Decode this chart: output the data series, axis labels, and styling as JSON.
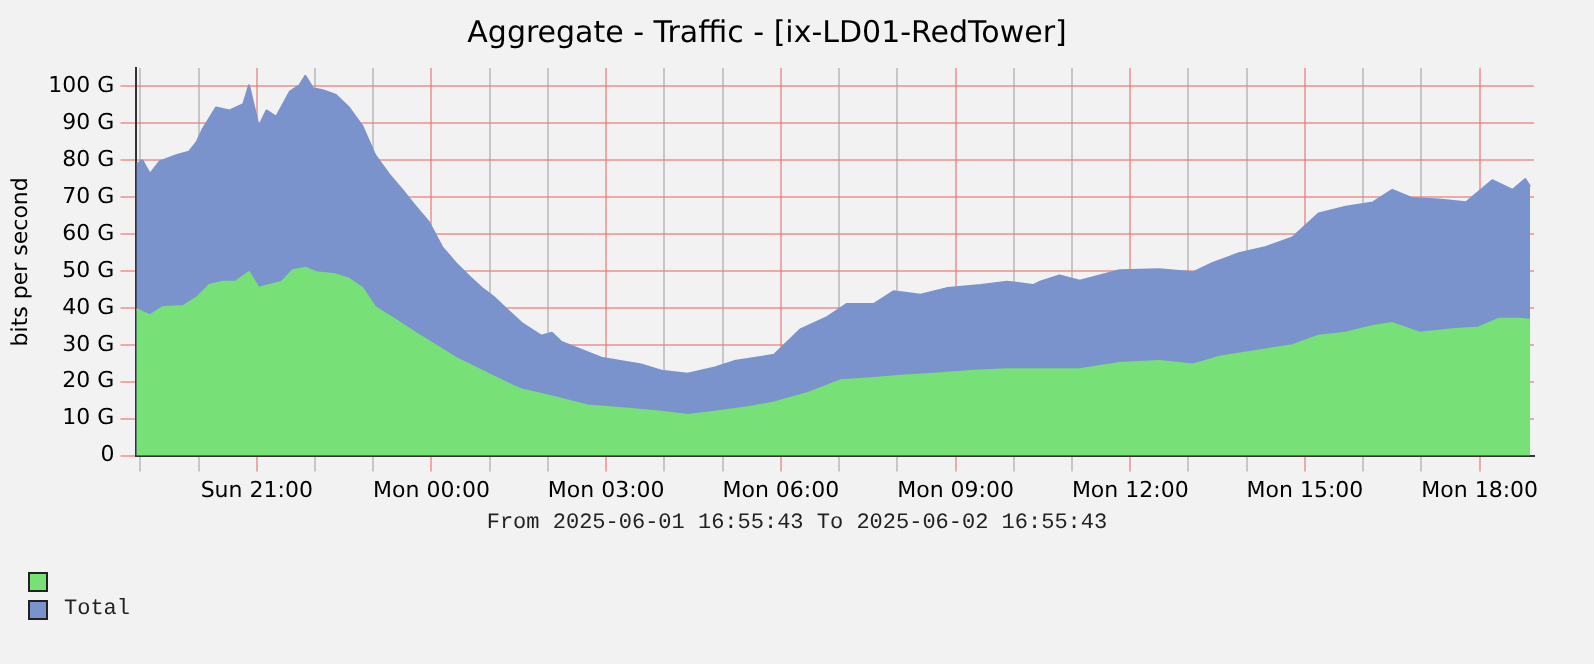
{
  "chart_data": {
    "type": "area",
    "title": "Aggregate - Traffic - [ix-LD01-RedTower]",
    "ylabel": "bits per second",
    "annotations": [
      "From 2025-06-01 16:55:43 To 2025-06-02 16:55:43"
    ],
    "xlim": [
      "2025-06-01T18:56",
      "2025-06-02T18:56"
    ],
    "xticks": [
      {
        "value": "2025-06-01T19:00",
        "label": null
      },
      {
        "value": "2025-06-01T20:00",
        "label": null
      },
      {
        "value": "2025-06-01T21:00",
        "label": "Sun 21:00"
      },
      {
        "value": "2025-06-01T22:00",
        "label": null
      },
      {
        "value": "2025-06-01T23:00",
        "label": null
      },
      {
        "value": "2025-06-02T00:00",
        "label": "Mon 00:00"
      },
      {
        "value": "2025-06-02T01:00",
        "label": null
      },
      {
        "value": "2025-06-02T02:00",
        "label": null
      },
      {
        "value": "2025-06-02T03:00",
        "label": "Mon 03:00"
      },
      {
        "value": "2025-06-02T04:00",
        "label": null
      },
      {
        "value": "2025-06-02T05:00",
        "label": null
      },
      {
        "value": "2025-06-02T06:00",
        "label": "Mon 06:00"
      },
      {
        "value": "2025-06-02T07:00",
        "label": null
      },
      {
        "value": "2025-06-02T08:00",
        "label": null
      },
      {
        "value": "2025-06-02T09:00",
        "label": "Mon 09:00"
      },
      {
        "value": "2025-06-02T10:00",
        "label": null
      },
      {
        "value": "2025-06-02T11:00",
        "label": null
      },
      {
        "value": "2025-06-02T12:00",
        "label": "Mon 12:00"
      },
      {
        "value": "2025-06-02T13:00",
        "label": null
      },
      {
        "value": "2025-06-02T14:00",
        "label": null
      },
      {
        "value": "2025-06-02T15:00",
        "label": "Mon 15:00"
      },
      {
        "value": "2025-06-02T16:00",
        "label": null
      },
      {
        "value": "2025-06-02T17:00",
        "label": null
      },
      {
        "value": "2025-06-02T18:00",
        "label": "Mon 18:00"
      }
    ],
    "ylim": [
      0,
      105
    ],
    "yticks": [
      0,
      {
        "value": 10,
        "label": "10 G"
      },
      {
        "value": 20,
        "label": "20 G"
      },
      {
        "value": 30,
        "label": "30 G"
      },
      {
        "value": 40,
        "label": "40 G"
      },
      {
        "value": 50,
        "label": "50 G"
      },
      {
        "value": 60,
        "label": "60 G"
      },
      {
        "value": 70,
        "label": "70 G"
      },
      {
        "value": 80,
        "label": "80 G"
      },
      {
        "value": 90,
        "label": "90 G"
      },
      {
        "value": 100,
        "label": "100 G"
      }
    ],
    "grid": true,
    "legend": "bottom left",
    "series": [
      {
        "color": "#77e077",
        "x": [
          "2025-06-01T18:56",
          "2025-06-01T19:10",
          "2025-06-01T19:23",
          "2025-06-01T19:44",
          "2025-06-01T19:58",
          "2025-06-01T20:11",
          "2025-06-01T20:25",
          "2025-06-01T20:38",
          "2025-06-01T20:52",
          "2025-06-01T21:02",
          "2025-06-01T21:13",
          "2025-06-01T21:26",
          "2025-06-01T21:37",
          "2025-06-01T21:50",
          "2025-06-01T22:01",
          "2025-06-01T22:21",
          "2025-06-01T22:35",
          "2025-06-01T22:49",
          "2025-06-01T23:02",
          "2025-06-01T23:23",
          "2025-06-01T23:43",
          "2025-06-02T00:04",
          "2025-06-02T00:25",
          "2025-06-02T00:45",
          "2025-06-02T01:05",
          "2025-06-02T01:26",
          "2025-06-02T01:33",
          "2025-06-02T02:01",
          "2025-06-02T02:41",
          "2025-06-02T03:23",
          "2025-06-02T03:57",
          "2025-06-02T04:24",
          "2025-06-02T04:52",
          "2025-06-02T05:26",
          "2025-06-02T05:53",
          "2025-06-02T06:28",
          "2025-06-02T07:02",
          "2025-06-02T07:36",
          "2025-06-02T08:04",
          "2025-06-02T08:38",
          "2025-06-02T09:19",
          "2025-06-02T09:53",
          "2025-06-02T10:27",
          "2025-06-02T11:08",
          "2025-06-02T11:49",
          "2025-06-02T12:30",
          "2025-06-02T13:05",
          "2025-06-02T13:32",
          "2025-06-02T14:06",
          "2025-06-02T14:47",
          "2025-06-02T15:14",
          "2025-06-02T15:42",
          "2025-06-02T16:10",
          "2025-06-02T16:30",
          "2025-06-02T16:58",
          "2025-06-02T17:32",
          "2025-06-02T17:59",
          "2025-06-02T18:20",
          "2025-06-02T18:40",
          "2025-06-02T18:52"
        ],
        "values": [
          39.7,
          38,
          40.2,
          40.5,
          42.8,
          46.2,
          47.1,
          47.1,
          49.7,
          45.4,
          46.2,
          47.1,
          50.2,
          50.9,
          49.7,
          49.1,
          47.9,
          45.4,
          40.2,
          36.8,
          33.3,
          29.9,
          26.5,
          23.9,
          21.3,
          18.7,
          17.9,
          16.2,
          13.6,
          12.7,
          11.9,
          11,
          11.9,
          13.1,
          14.4,
          17,
          20.4,
          21,
          21.6,
          22.2,
          23,
          23.4,
          23.4,
          23.4,
          25.1,
          25.6,
          24.7,
          26.8,
          28.2,
          29.9,
          32.5,
          33.3,
          35.1,
          35.9,
          33.3,
          34.2,
          34.7,
          37.1,
          37.1,
          36.8
        ]
      },
      {
        "name": "Total",
        "color": "#7b93cc",
        "x": [
          "2025-06-01T18:56",
          "2025-06-01T19:02",
          "2025-06-01T19:10",
          "2025-06-01T19:20",
          "2025-06-01T19:37",
          "2025-06-01T19:50",
          "2025-06-01T19:58",
          "2025-06-01T20:04",
          "2025-06-01T20:18",
          "2025-06-01T20:32",
          "2025-06-01T20:46",
          "2025-06-01T20:52",
          "2025-06-01T21:02",
          "2025-06-01T21:10",
          "2025-06-01T21:20",
          "2025-06-01T21:34",
          "2025-06-01T21:44",
          "2025-06-01T21:50",
          "2025-06-01T21:58",
          "2025-06-01T22:08",
          "2025-06-01T22:21",
          "2025-06-01T22:35",
          "2025-06-01T22:49",
          "2025-06-01T23:02",
          "2025-06-01T23:16",
          "2025-06-01T23:30",
          "2025-06-01T23:43",
          "2025-06-01T23:57",
          "2025-06-02T00:11",
          "2025-06-02T00:25",
          "2025-06-02T00:38",
          "2025-06-02T00:52",
          "2025-06-02T01:05",
          "2025-06-02T01:19",
          "2025-06-02T01:33",
          "2025-06-02T01:53",
          "2025-06-02T02:04",
          "2025-06-02T02:14",
          "2025-06-02T02:55",
          "2025-06-02T03:36",
          "2025-06-02T03:57",
          "2025-06-02T04:24",
          "2025-06-02T04:52",
          "2025-06-02T05:12",
          "2025-06-02T05:53",
          "2025-06-02T06:20",
          "2025-06-02T06:48",
          "2025-06-02T07:08",
          "2025-06-02T07:36",
          "2025-06-02T07:56",
          "2025-06-02T08:24",
          "2025-06-02T08:52",
          "2025-06-02T09:26",
          "2025-06-02T09:53",
          "2025-06-02T10:20",
          "2025-06-02T10:27",
          "2025-06-02T10:47",
          "2025-06-02T11:08",
          "2025-06-02T11:49",
          "2025-06-02T12:30",
          "2025-06-02T13:05",
          "2025-06-02T13:25",
          "2025-06-02T13:52",
          "2025-06-02T14:20",
          "2025-06-02T14:47",
          "2025-06-02T15:14",
          "2025-06-02T15:42",
          "2025-06-02T16:10",
          "2025-06-02T16:30",
          "2025-06-02T16:50",
          "2025-06-02T17:18",
          "2025-06-02T17:46",
          "2025-06-02T18:13",
          "2025-06-02T18:34",
          "2025-06-02T18:47",
          "2025-06-02T18:52"
        ],
        "values": [
          78.9,
          80,
          76.3,
          79.7,
          81.4,
          82.3,
          84.9,
          88.3,
          94.3,
          93.5,
          95.2,
          100.3,
          89.2,
          93.5,
          91.8,
          98.6,
          100.3,
          102.9,
          99.5,
          99,
          97.8,
          94.3,
          89.2,
          81.4,
          76.3,
          72,
          67.7,
          63.4,
          56.5,
          52.2,
          48.8,
          45.4,
          42.8,
          39.3,
          35.9,
          32.5,
          33.3,
          30.8,
          26.5,
          24.7,
          23,
          22.2,
          23.9,
          25.6,
          27.3,
          34.2,
          37.6,
          41.1,
          41.1,
          44.5,
          43.6,
          45.4,
          46.2,
          47.1,
          46.2,
          47.1,
          48.8,
          47.4,
          50.2,
          50.5,
          49.7,
          52.2,
          54.8,
          56.5,
          59.1,
          65.6,
          67.4,
          68.6,
          72,
          69.8,
          69.4,
          68.6,
          74.6,
          72,
          74.9,
          72.9
        ]
      }
    ]
  }
}
